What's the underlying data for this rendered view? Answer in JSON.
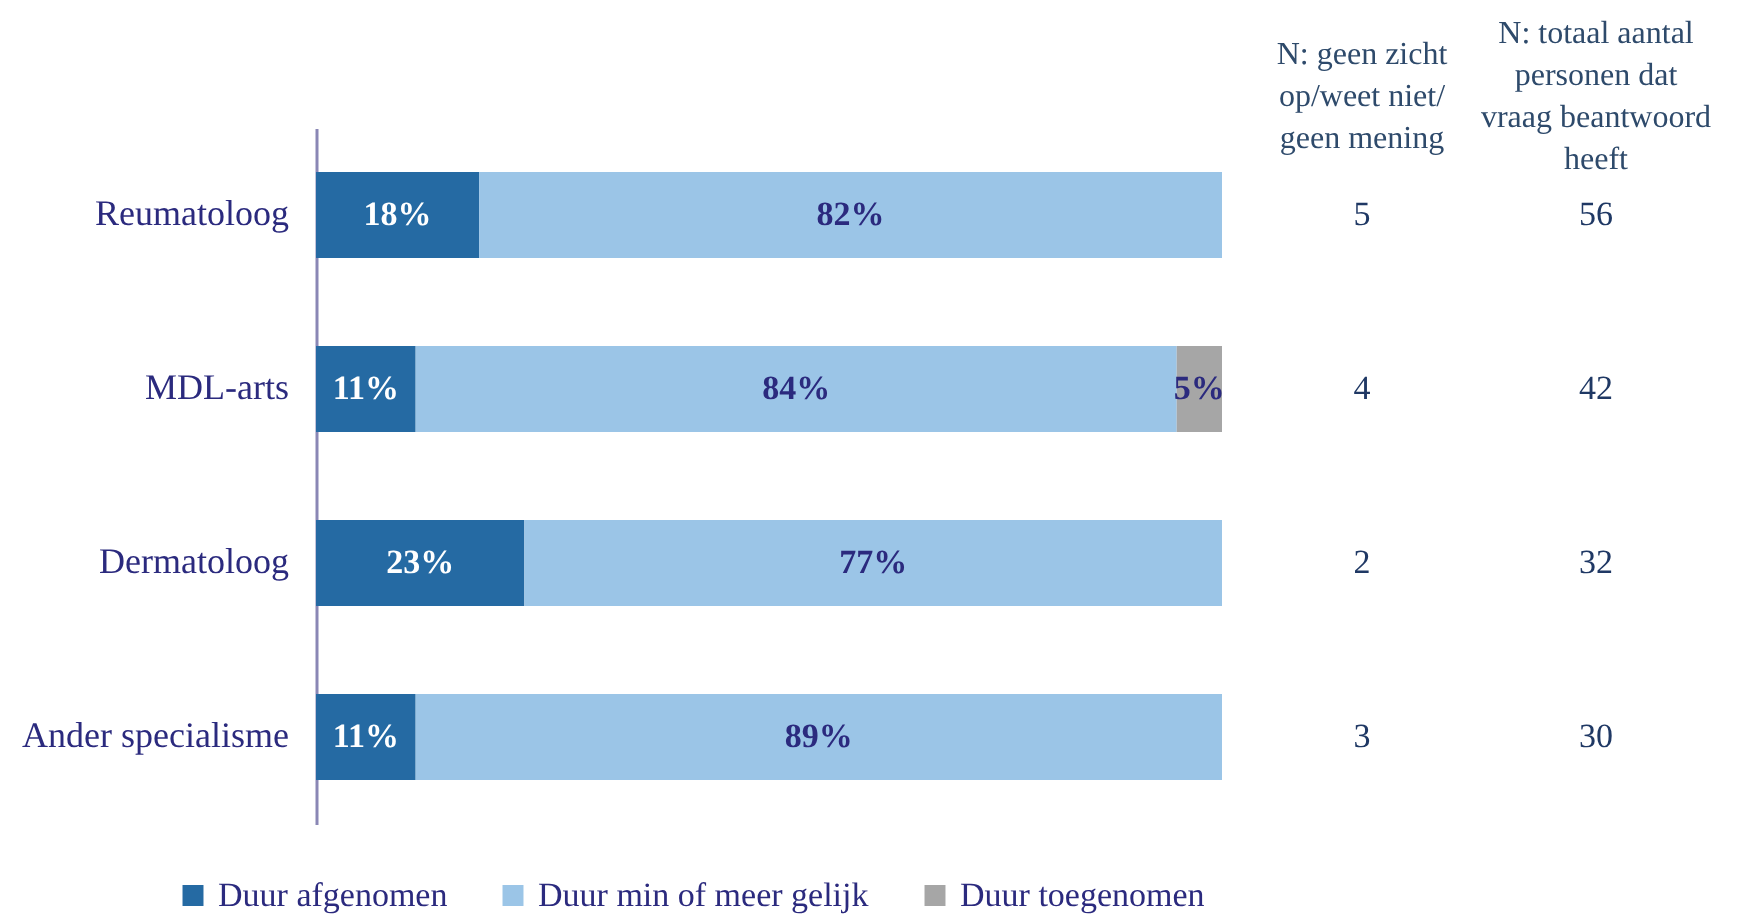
{
  "chart_data": {
    "type": "bar",
    "orientation": "horizontal",
    "stacked": true,
    "categories": [
      "Reumatoloog",
      "MDL-arts",
      "Dermatoloog",
      "Ander specialisme"
    ],
    "series": [
      {
        "name": "Duur afgenomen",
        "color": "#256aa3",
        "values": [
          18,
          11,
          23,
          11
        ],
        "value_labels": [
          "18%",
          "11%",
          "23%",
          "11%"
        ]
      },
      {
        "name": "Duur min of meer gelijk",
        "color": "#9bc5e7",
        "values": [
          82,
          84,
          77,
          89
        ],
        "value_labels": [
          "82%",
          "84%",
          "77%",
          "89%"
        ]
      },
      {
        "name": "Duur toegenomen",
        "color": "#a6a6a6",
        "values": [
          null,
          5,
          null,
          null
        ],
        "value_labels": [
          null,
          "5%",
          null,
          null
        ]
      }
    ],
    "xlim": [
      0,
      100
    ],
    "tick_labels": "y",
    "legend": "bottom",
    "annotations": [
      "N: geen zicht op/weet niet/ geen mening",
      "N: totaal aantal personen dat vraag beantwoord heeft",
      "5",
      "56",
      "4",
      "42",
      "2",
      "32",
      "3",
      "30"
    ]
  }
}
